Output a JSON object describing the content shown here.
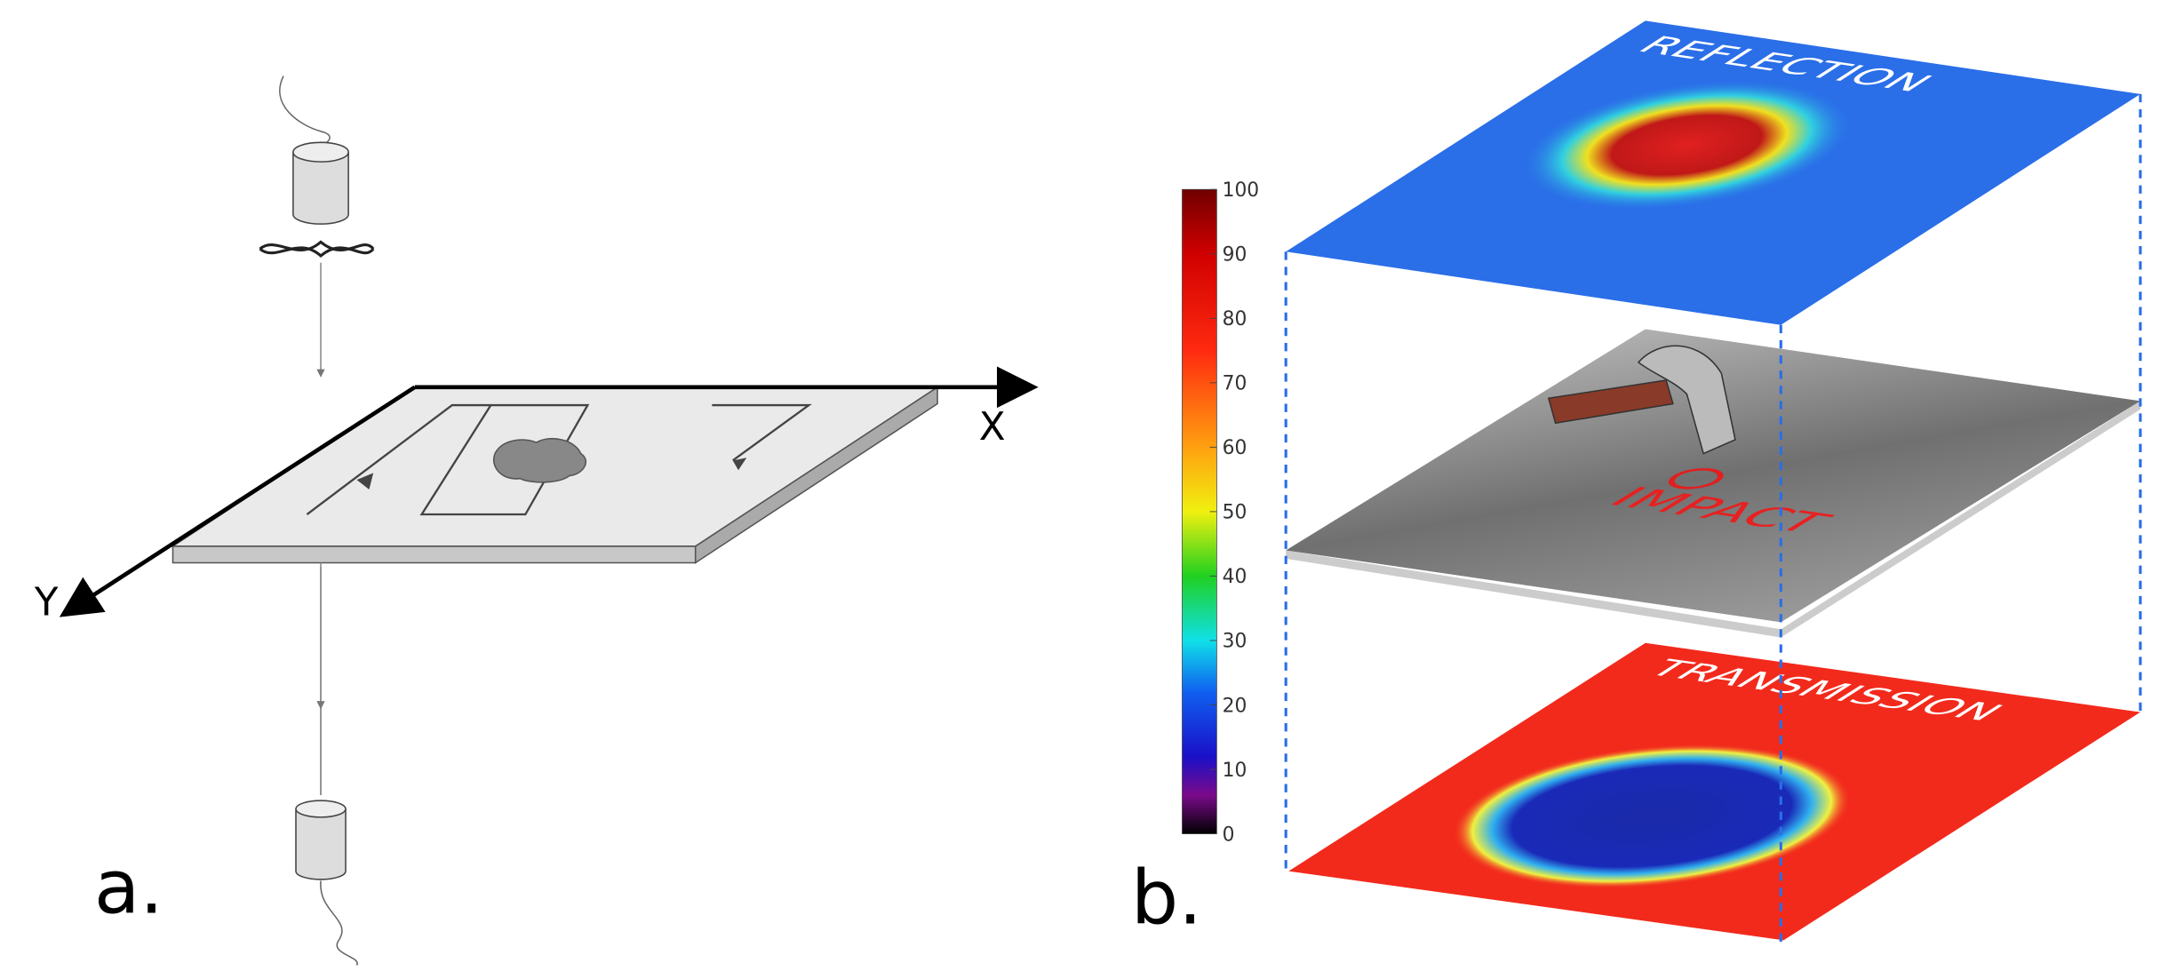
{
  "panel_a": {
    "label": "a.",
    "axes": {
      "x": "X",
      "y": "Y"
    }
  },
  "panel_b": {
    "label": "b.",
    "layers": {
      "top": "REFLECTION",
      "middle": "IMPACT",
      "bottom": "TRANSMISSION"
    },
    "colorbar": {
      "range": [
        0,
        100
      ],
      "ticks": [
        0,
        10,
        20,
        30,
        40,
        50,
        60,
        70,
        80,
        90,
        100
      ]
    }
  }
}
